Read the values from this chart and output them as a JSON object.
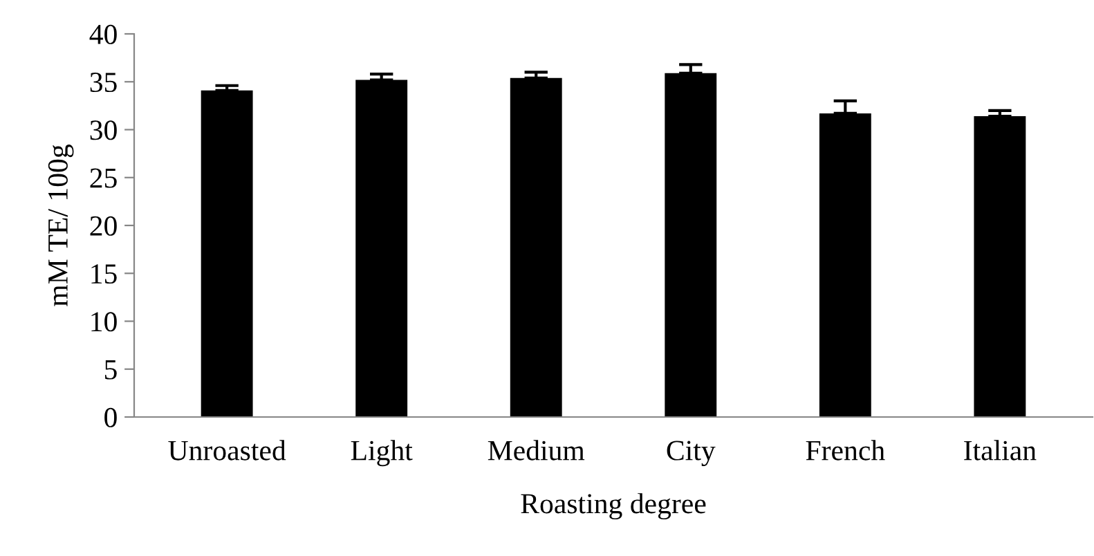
{
  "chart_data": {
    "type": "bar",
    "xlabel": "Roasting degree",
    "ylabel": "mM TE/ 100g",
    "categories": [
      "Unroasted",
      "Light",
      "Medium",
      "City",
      "French",
      "Italian"
    ],
    "values": [
      34.1,
      35.2,
      35.4,
      35.9,
      31.7,
      31.4
    ],
    "errors": [
      [
        34.1,
        34.6
      ],
      [
        35.2,
        35.8
      ],
      [
        35.4,
        36.0
      ],
      [
        35.9,
        36.8
      ],
      [
        31.7,
        33.0
      ],
      [
        31.4,
        32.0
      ]
    ],
    "color": "#000000",
    "ylim": [
      0,
      40
    ],
    "yticks": [
      0,
      5,
      10,
      15,
      20,
      25,
      30,
      35,
      40
    ],
    "grid": false,
    "legend": false
  }
}
